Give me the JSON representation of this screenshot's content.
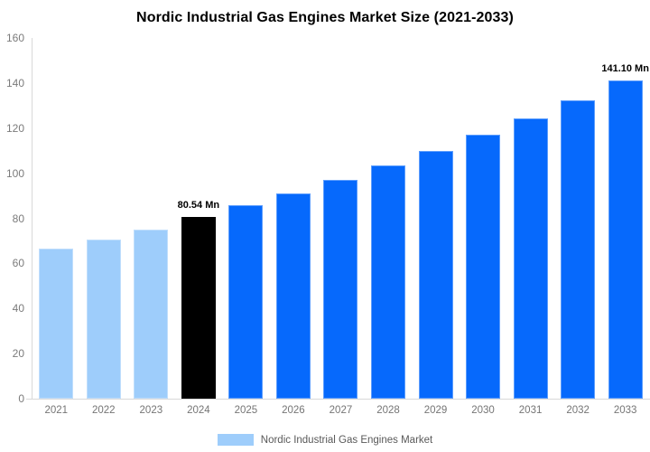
{
  "chart_data": {
    "type": "bar",
    "title": "Nordic Industrial Gas Engines Market Size (2021-2033)",
    "xlabel": "",
    "ylabel": "",
    "value_unit": "Mn",
    "categories": [
      "2021",
      "2022",
      "2023",
      "2024",
      "2025",
      "2026",
      "2027",
      "2028",
      "2029",
      "2030",
      "2031",
      "2032",
      "2033"
    ],
    "values": [
      66.4,
      70.7,
      75.2,
      80.54,
      85.7,
      91.2,
      97.1,
      103.3,
      109.9,
      117.0,
      124.5,
      132.5,
      141.1
    ],
    "bar_colors": [
      "#9ECDFB",
      "#9ECDFB",
      "#9ECDFB",
      "#000000",
      "#0669FC",
      "#0669FC",
      "#0669FC",
      "#0669FC",
      "#0669FC",
      "#0669FC",
      "#0669FC",
      "#0669FC",
      "#0669FC"
    ],
    "colors": {
      "historical": "#9ECDFB",
      "current": "#000000",
      "forecast": "#0669FC",
      "axis_line": "#d9d9d9",
      "tick_text": "#7b7b7b",
      "category_text": "#757575",
      "legend_text": "#595959"
    },
    "annotations": [
      {
        "category": "2024",
        "text": "80.54 Mn"
      },
      {
        "category": "2033",
        "text": "141.10 Mn"
      }
    ],
    "ylim": [
      0,
      160
    ],
    "y_ticks": [
      0,
      20,
      40,
      60,
      80,
      100,
      120,
      140,
      160
    ],
    "grid": false,
    "legend": {
      "position": "bottom",
      "entries": [
        {
          "label": "Nordic Industrial Gas Engines Market",
          "color": "#9ECDFB"
        }
      ]
    }
  }
}
